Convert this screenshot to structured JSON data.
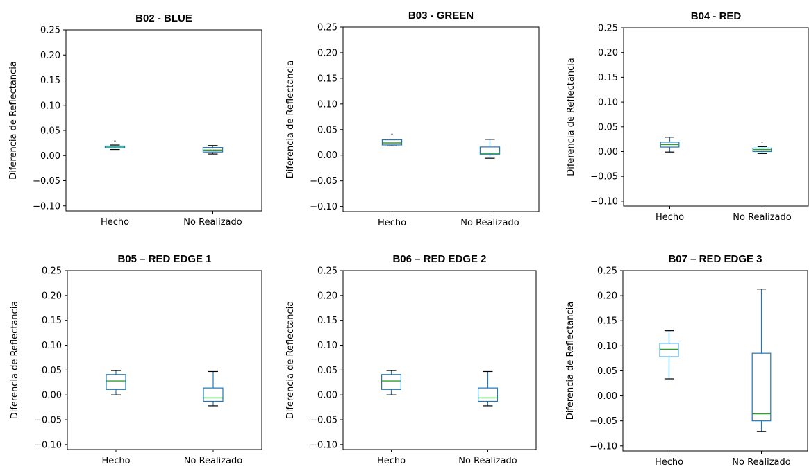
{
  "y_label": "Diferencia de Reflectancia",
  "y_ticks": [
    "0.25",
    "0.20",
    "0.15",
    "0.10",
    "0.05",
    "0.00",
    "−0.05",
    "−0.10"
  ],
  "colors": {
    "box": "#1f77b4",
    "median": "#2ca02c",
    "cap": "#000000"
  },
  "chart_data": [
    {
      "type": "box",
      "title": "B02 - BLUE",
      "ylabel": "Diferencia de Reflectancia",
      "ylim": [
        -0.11,
        0.25
      ],
      "categories": [
        "Hecho",
        "No Realizado"
      ],
      "boxes": [
        {
          "category": "Hecho",
          "whisker_low": 0.012,
          "q1": 0.015,
          "median": 0.017,
          "q3": 0.019,
          "whisker_high": 0.021,
          "fliers": [
            0.029
          ]
        },
        {
          "category": "No Realizado",
          "whisker_low": 0.003,
          "q1": 0.007,
          "median": 0.011,
          "q3": 0.016,
          "whisker_high": 0.02,
          "fliers": []
        }
      ]
    },
    {
      "type": "box",
      "title": "B03 - GREEN",
      "ylabel": "Diferencia de Reflectancia",
      "ylim": [
        -0.11,
        0.25
      ],
      "categories": [
        "Hecho",
        "No Realizado"
      ],
      "boxes": [
        {
          "category": "Hecho",
          "whisker_low": 0.018,
          "q1": 0.02,
          "median": 0.024,
          "q3": 0.03,
          "whisker_high": 0.031,
          "fliers": [
            0.041
          ]
        },
        {
          "category": "No Realizado",
          "whisker_low": -0.006,
          "q1": 0.002,
          "median": 0.004,
          "q3": 0.016,
          "whisker_high": 0.031,
          "fliers": []
        }
      ]
    },
    {
      "type": "box",
      "title": "B04 - RED",
      "ylabel": "Diferencia de Reflectancia",
      "ylim": [
        -0.11,
        0.25
      ],
      "categories": [
        "Hecho",
        "No Realizado"
      ],
      "boxes": [
        {
          "category": "Hecho",
          "whisker_low": -0.001,
          "q1": 0.009,
          "median": 0.014,
          "q3": 0.019,
          "whisker_high": 0.029,
          "fliers": []
        },
        {
          "category": "No Realizado",
          "whisker_low": -0.004,
          "q1": 0.0,
          "median": 0.004,
          "q3": 0.007,
          "whisker_high": 0.01,
          "fliers": [
            0.019
          ]
        }
      ]
    },
    {
      "type": "box",
      "title": "B05 – RED EDGE 1",
      "ylabel": "Diferencia de Reflectancia",
      "ylim": [
        -0.11,
        0.25
      ],
      "categories": [
        "Hecho",
        "No Realizado"
      ],
      "boxes": [
        {
          "category": "Hecho",
          "whisker_low": 0.0,
          "q1": 0.011,
          "median": 0.028,
          "q3": 0.041,
          "whisker_high": 0.049,
          "fliers": []
        },
        {
          "category": "No Realizado",
          "whisker_low": -0.022,
          "q1": -0.013,
          "median": -0.006,
          "q3": 0.014,
          "whisker_high": 0.047,
          "fliers": []
        }
      ]
    },
    {
      "type": "box",
      "title": "B06 – RED EDGE 2",
      "ylabel": "Diferencia de Reflectancia",
      "ylim": [
        -0.11,
        0.25
      ],
      "categories": [
        "Hecho",
        "No Realizado"
      ],
      "boxes": [
        {
          "category": "Hecho",
          "whisker_low": 0.0,
          "q1": 0.011,
          "median": 0.028,
          "q3": 0.041,
          "whisker_high": 0.049,
          "fliers": []
        },
        {
          "category": "No Realizado",
          "whisker_low": -0.022,
          "q1": -0.013,
          "median": -0.006,
          "q3": 0.014,
          "whisker_high": 0.047,
          "fliers": []
        }
      ]
    },
    {
      "type": "box",
      "title": "B07 – RED EDGE 3",
      "ylabel": "Diferencia de Reflectancia",
      "ylim": [
        -0.11,
        0.25
      ],
      "categories": [
        "Hecho",
        "No Realizado"
      ],
      "boxes": [
        {
          "category": "Hecho",
          "whisker_low": 0.034,
          "q1": 0.078,
          "median": 0.093,
          "q3": 0.105,
          "whisker_high": 0.13,
          "fliers": []
        },
        {
          "category": "No Realizado",
          "whisker_low": -0.071,
          "q1": -0.05,
          "median": -0.036,
          "q3": 0.085,
          "whisker_high": 0.213,
          "fliers": []
        }
      ]
    }
  ]
}
